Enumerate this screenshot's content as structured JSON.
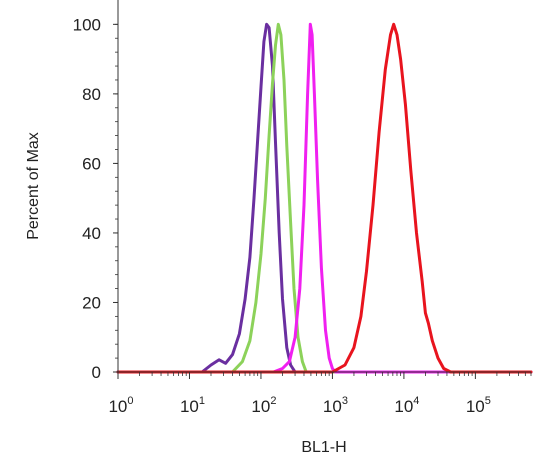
{
  "chart_data": {
    "type": "line",
    "title": "",
    "xlabel": "BL1-H",
    "ylabel": "Percent of Max",
    "x_scale": "log",
    "xlim": [
      1,
      600000
    ],
    "ylim": [
      0,
      107
    ],
    "x_ticks": [
      {
        "value": 1,
        "base": "10",
        "exp": "0"
      },
      {
        "value": 10,
        "base": "10",
        "exp": "1"
      },
      {
        "value": 100,
        "base": "10",
        "exp": "2"
      },
      {
        "value": 1000,
        "base": "10",
        "exp": "3"
      },
      {
        "value": 10000,
        "base": "10",
        "exp": "4"
      },
      {
        "value": 100000,
        "base": "10",
        "exp": "5"
      }
    ],
    "y_ticks": [
      0,
      20,
      40,
      60,
      80,
      100
    ],
    "grid": false,
    "legend": "none",
    "series": [
      {
        "color": "#6a2fa0",
        "points": [
          [
            1,
            0
          ],
          [
            15,
            0
          ],
          [
            20,
            2
          ],
          [
            26,
            3.5
          ],
          [
            32,
            2.5
          ],
          [
            40,
            5
          ],
          [
            50,
            11
          ],
          [
            60,
            21
          ],
          [
            70,
            33
          ],
          [
            80,
            50
          ],
          [
            90,
            67
          ],
          [
            100,
            82
          ],
          [
            110,
            95
          ],
          [
            120,
            100
          ],
          [
            130,
            99
          ],
          [
            145,
            88
          ],
          [
            160,
            66
          ],
          [
            180,
            40
          ],
          [
            200,
            21
          ],
          [
            230,
            7
          ],
          [
            260,
            2
          ],
          [
            300,
            0
          ],
          [
            600000,
            0
          ]
        ]
      },
      {
        "color": "#8cd25a",
        "points": [
          [
            1,
            0
          ],
          [
            40,
            0
          ],
          [
            55,
            3
          ],
          [
            70,
            9
          ],
          [
            85,
            20
          ],
          [
            100,
            34
          ],
          [
            115,
            50
          ],
          [
            130,
            68
          ],
          [
            145,
            83
          ],
          [
            160,
            94
          ],
          [
            175,
            100
          ],
          [
            190,
            97
          ],
          [
            210,
            84
          ],
          [
            230,
            65
          ],
          [
            260,
            43
          ],
          [
            290,
            24
          ],
          [
            330,
            10
          ],
          [
            380,
            3
          ],
          [
            430,
            0
          ],
          [
            600000,
            0
          ]
        ]
      },
      {
        "color": "#f020f0",
        "points": [
          [
            1,
            0
          ],
          [
            150,
            0
          ],
          [
            200,
            1
          ],
          [
            250,
            3
          ],
          [
            300,
            10
          ],
          [
            350,
            24
          ],
          [
            400,
            48
          ],
          [
            450,
            80
          ],
          [
            490,
            100
          ],
          [
            520,
            97
          ],
          [
            560,
            80
          ],
          [
            620,
            55
          ],
          [
            700,
            30
          ],
          [
            800,
            12
          ],
          [
            900,
            4
          ],
          [
            1000,
            1
          ],
          [
            1100,
            0
          ],
          [
            600000,
            0
          ]
        ]
      },
      {
        "color": "#e8141e",
        "points": [
          [
            1,
            0
          ],
          [
            1000,
            0
          ],
          [
            1500,
            2
          ],
          [
            2000,
            7
          ],
          [
            2500,
            16
          ],
          [
            3000,
            29
          ],
          [
            3700,
            48
          ],
          [
            4500,
            69
          ],
          [
            5500,
            87
          ],
          [
            6500,
            97
          ],
          [
            7200,
            100
          ],
          [
            8000,
            97
          ],
          [
            9000,
            90
          ],
          [
            10500,
            77
          ],
          [
            12500,
            58
          ],
          [
            15000,
            40
          ],
          [
            18000,
            26
          ],
          [
            20000,
            17
          ],
          [
            22000,
            14
          ],
          [
            25000,
            9
          ],
          [
            30000,
            4
          ],
          [
            36000,
            1
          ],
          [
            45000,
            0
          ],
          [
            600000,
            0
          ]
        ]
      }
    ]
  }
}
